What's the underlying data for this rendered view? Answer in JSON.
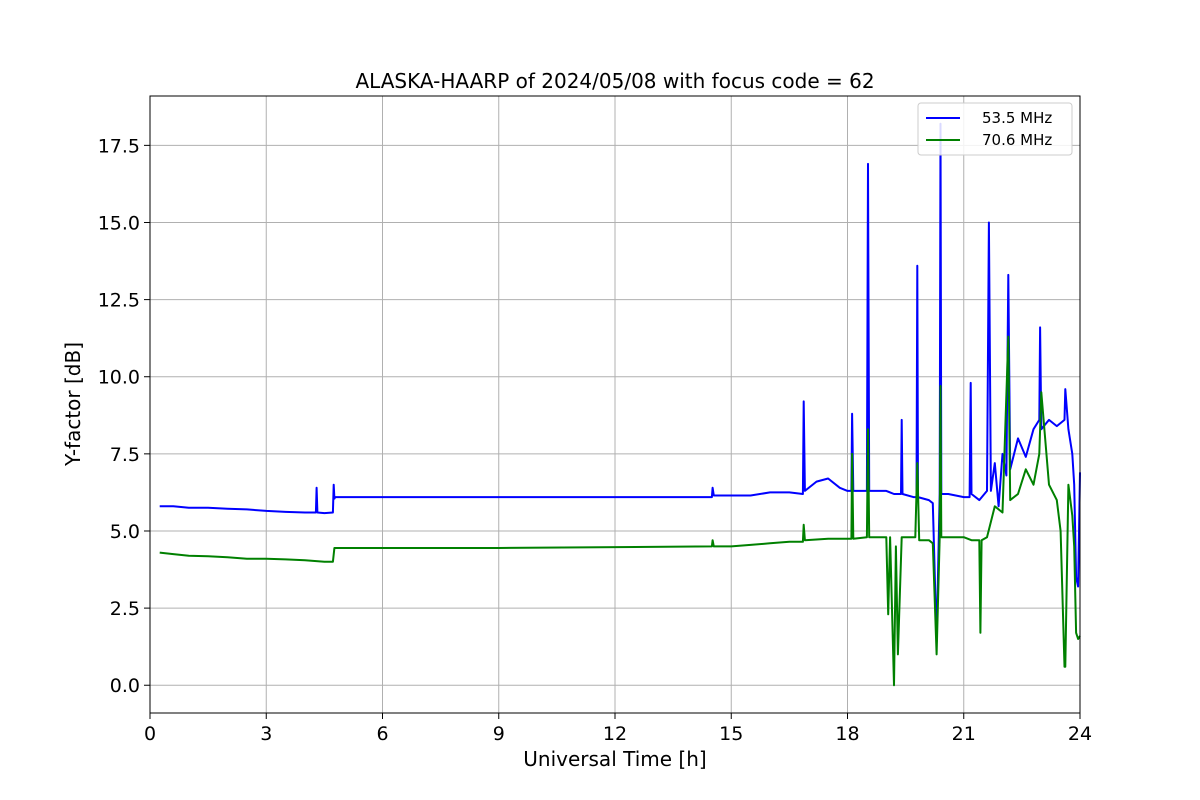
{
  "chart_data": {
    "type": "line",
    "title": "ALASKA-HAARP of 2024/05/08 with focus code = 62",
    "xlabel": "Universal Time [h]",
    "ylabel": "Y-factor [dB]",
    "xlim": [
      0,
      24
    ],
    "ylim": [
      -0.9,
      19.1
    ],
    "x_ticks": [
      0,
      3,
      6,
      9,
      12,
      15,
      18,
      21,
      24
    ],
    "x_tick_labels": [
      "0",
      "3",
      "6",
      "9",
      "12",
      "15",
      "18",
      "21",
      "24"
    ],
    "y_ticks": [
      0.0,
      2.5,
      5.0,
      7.5,
      10.0,
      12.5,
      15.0,
      17.5
    ],
    "y_tick_labels": [
      "0.0",
      "2.5",
      "5.0",
      "7.5",
      "10.0",
      "12.5",
      "15.0",
      "17.5"
    ],
    "grid": true,
    "legend_position": "top-right",
    "series": [
      {
        "name": "53.5 MHz",
        "color": "#0000ff",
        "x": [
          0.25,
          0.6,
          1.0,
          1.5,
          2.0,
          2.5,
          3.0,
          3.5,
          4.0,
          4.28,
          4.3,
          4.32,
          4.5,
          4.72,
          4.74,
          4.76,
          4.78,
          9.0,
          14.5,
          14.52,
          14.55,
          15.0,
          15.5,
          16.0,
          16.5,
          16.85,
          16.87,
          16.9,
          17.2,
          17.5,
          17.8,
          18.0,
          18.1,
          18.12,
          18.15,
          18.5,
          18.53,
          18.56,
          19.0,
          19.2,
          19.38,
          19.4,
          19.42,
          19.7,
          19.78,
          19.8,
          19.82,
          20.1,
          20.2,
          20.3,
          20.38,
          20.4,
          20.42,
          20.6,
          21.0,
          21.15,
          21.18,
          21.2,
          21.4,
          21.6,
          21.65,
          21.7,
          21.8,
          21.9,
          22.0,
          22.1,
          22.15,
          22.2,
          22.4,
          22.6,
          22.8,
          22.95,
          22.97,
          23.0,
          23.2,
          23.4,
          23.6,
          23.62,
          23.7,
          23.8,
          23.85,
          23.9,
          23.95,
          24.0
        ],
        "y": [
          5.8,
          5.8,
          5.75,
          5.75,
          5.72,
          5.7,
          5.65,
          5.62,
          5.6,
          5.6,
          6.4,
          5.6,
          5.58,
          5.6,
          6.5,
          6.05,
          6.1,
          6.1,
          6.1,
          6.4,
          6.15,
          6.15,
          6.15,
          6.25,
          6.25,
          6.2,
          9.2,
          6.3,
          6.6,
          6.7,
          6.4,
          6.3,
          6.3,
          8.8,
          6.3,
          6.3,
          16.9,
          6.3,
          6.3,
          6.2,
          6.2,
          8.6,
          6.2,
          6.1,
          6.1,
          13.6,
          6.1,
          6.0,
          5.9,
          1.4,
          6.2,
          18.2,
          6.2,
          6.2,
          6.1,
          6.1,
          9.8,
          6.2,
          6.0,
          6.3,
          15.0,
          6.3,
          7.2,
          5.8,
          7.5,
          6.8,
          13.3,
          7.0,
          8.0,
          7.4,
          8.3,
          8.6,
          11.6,
          8.3,
          8.6,
          8.4,
          8.6,
          9.6,
          8.3,
          7.5,
          6.5,
          3.5,
          3.2,
          6.9
        ]
      },
      {
        "name": "70.6 MHz",
        "color": "#008000",
        "x": [
          0.25,
          0.6,
          1.0,
          1.5,
          2.0,
          2.5,
          3.0,
          3.5,
          4.0,
          4.5,
          4.72,
          4.76,
          4.78,
          9.0,
          14.5,
          14.52,
          14.55,
          15.0,
          15.5,
          16.0,
          16.5,
          16.85,
          16.87,
          16.9,
          17.5,
          18.0,
          18.1,
          18.12,
          18.15,
          18.5,
          18.53,
          18.56,
          19.0,
          19.05,
          19.1,
          19.2,
          19.25,
          19.3,
          19.4,
          19.5,
          19.75,
          19.8,
          19.85,
          20.1,
          20.2,
          20.3,
          20.38,
          20.4,
          20.42,
          20.6,
          21.0,
          21.2,
          21.4,
          21.43,
          21.46,
          21.6,
          21.8,
          22.0,
          22.15,
          22.2,
          22.4,
          22.6,
          22.8,
          22.95,
          23.0,
          23.2,
          23.4,
          23.5,
          23.6,
          23.62,
          23.7,
          23.8,
          23.85,
          23.9,
          23.95,
          24.0
        ],
        "y": [
          4.3,
          4.25,
          4.2,
          4.18,
          4.15,
          4.1,
          4.1,
          4.08,
          4.05,
          4.0,
          4.0,
          4.45,
          4.45,
          4.45,
          4.5,
          4.7,
          4.5,
          4.5,
          4.55,
          4.6,
          4.65,
          4.65,
          5.2,
          4.7,
          4.75,
          4.75,
          4.75,
          7.5,
          4.75,
          4.8,
          8.3,
          4.8,
          4.8,
          2.3,
          4.8,
          0.0,
          4.5,
          1.0,
          4.8,
          4.8,
          4.8,
          7.2,
          4.7,
          4.7,
          4.6,
          1.0,
          4.8,
          9.7,
          4.8,
          4.8,
          4.8,
          4.7,
          4.7,
          1.7,
          4.7,
          4.8,
          5.8,
          5.6,
          11.3,
          6.0,
          6.2,
          7.0,
          6.5,
          7.5,
          9.5,
          6.5,
          6.0,
          5.0,
          0.6,
          0.6,
          6.5,
          5.5,
          4.5,
          1.7,
          1.5,
          1.6
        ]
      }
    ]
  }
}
